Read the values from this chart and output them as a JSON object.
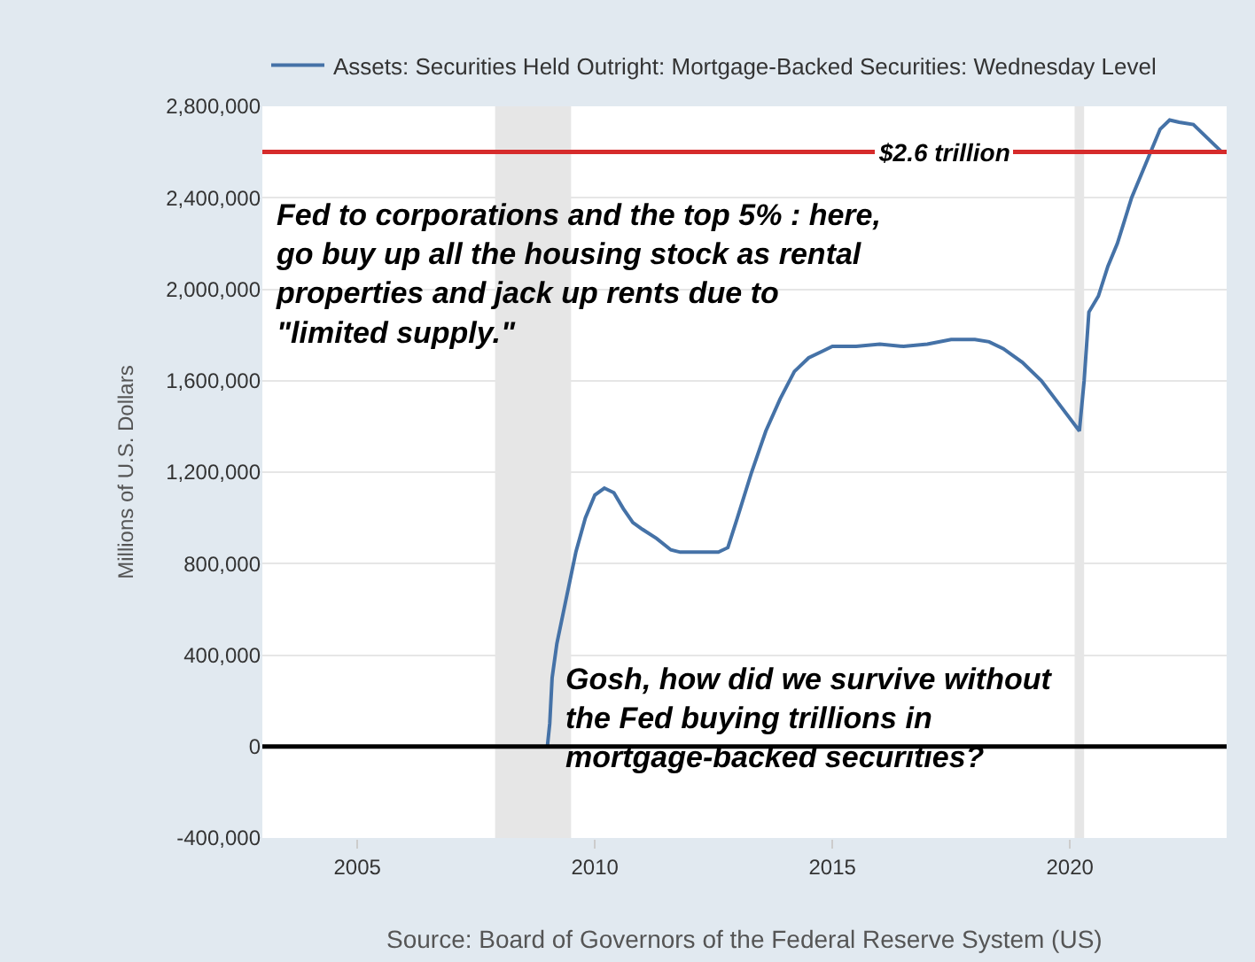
{
  "chart_data": {
    "type": "line",
    "ylabel": "Millions of U.S. Dollars",
    "series": [
      {
        "name": "Assets: Securities Held Outright: Mortgage-Backed Securities: Wednesday Level",
        "color": "#4572a7",
        "x": [
          2009.0,
          2009.05,
          2009.1,
          2009.2,
          2009.4,
          2009.6,
          2009.8,
          2010.0,
          2010.2,
          2010.4,
          2010.6,
          2010.8,
          2011.0,
          2011.3,
          2011.6,
          2011.8,
          2012.0,
          2012.3,
          2012.6,
          2012.8,
          2013.0,
          2013.3,
          2013.6,
          2013.9,
          2014.2,
          2014.5,
          2014.8,
          2015.0,
          2015.5,
          2016.0,
          2016.5,
          2017.0,
          2017.5,
          2018.0,
          2018.3,
          2018.6,
          2019.0,
          2019.4,
          2019.8,
          2020.2,
          2020.3,
          2020.4,
          2020.6,
          2020.8,
          2021.0,
          2021.3,
          2021.6,
          2021.9,
          2022.1,
          2022.3,
          2022.6,
          2022.9,
          2023.2
        ],
        "values": [
          0,
          100000,
          300000,
          450000,
          650000,
          850000,
          1000000,
          1100000,
          1130000,
          1110000,
          1040000,
          980000,
          950000,
          910000,
          860000,
          850000,
          850000,
          850000,
          850000,
          870000,
          1000000,
          1200000,
          1380000,
          1520000,
          1640000,
          1700000,
          1730000,
          1750000,
          1750000,
          1760000,
          1750000,
          1760000,
          1780000,
          1780000,
          1770000,
          1740000,
          1680000,
          1600000,
          1490000,
          1380000,
          1600000,
          1900000,
          1970000,
          2100000,
          2200000,
          2400000,
          2550000,
          2700000,
          2740000,
          2730000,
          2720000,
          2660000,
          2600000
        ]
      }
    ],
    "xlim": [
      2003,
      2023.3
    ],
    "xticks": [
      2005,
      2010,
      2015,
      2020
    ],
    "ylim": [
      -400000,
      2800000
    ],
    "yticks": [
      {
        "value": -400000,
        "label": "-400,000"
      },
      {
        "value": 0,
        "label": "0"
      },
      {
        "value": 400000,
        "label": "400,000"
      },
      {
        "value": 800000,
        "label": "800,000"
      },
      {
        "value": 1200000,
        "label": "1,200,000"
      },
      {
        "value": 1600000,
        "label": "1,600,000"
      },
      {
        "value": 2000000,
        "label": "2,000,000"
      },
      {
        "value": 2400000,
        "label": "2,400,000"
      },
      {
        "value": 2800000,
        "label": "2,800,000"
      }
    ],
    "grid": "y",
    "legend": "top",
    "bands": [
      {
        "axis": "x",
        "from": 2007.9,
        "to": 2009.5,
        "color": "#e6e6e6"
      },
      {
        "axis": "x",
        "from": 2020.1,
        "to": 2020.3,
        "color": "#e6e6e6"
      }
    ],
    "ref_lines": [
      {
        "axis": "y",
        "value": 2600000,
        "label": "$2.6 trillion",
        "color": "#d62b2b"
      },
      {
        "axis": "y",
        "value": 0,
        "color": "#000000"
      }
    ],
    "annotations": [
      "Fed to corporations and the top 5% : here,\ngo buy up all the housing stock as rental\nproperties and jack up rents due to\n\"limited supply.\"",
      "Gosh, how did we survive without\nthe Fed buying trillions in\nmortgage-backed securities?",
      "Source: Board of Governors of the Federal Reserve System (US)"
    ]
  }
}
